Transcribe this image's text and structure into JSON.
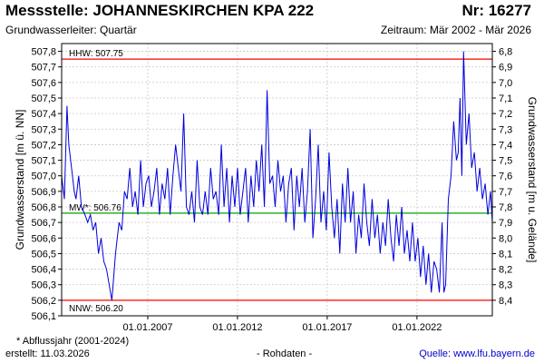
{
  "header": {
    "title": "Messstelle: JOHANNESKIRCHEN KPA 222",
    "number": "Nr: 16277",
    "aquifer": "Grundwasserleiter: Quartär",
    "period": "Zeitraum: Mär 2002 - Mär 2026"
  },
  "footer": {
    "note": "* Abflussjahr (2001-2024)",
    "created": "erstellt:  11.03.2026",
    "raw": "- Rohdaten -",
    "source": "Quelle: www.lfu.bayern.de"
  },
  "chart_data": {
    "type": "line",
    "ylabel": "Grundwasserstand [m ü. NN]",
    "y2label": "Grundwasserstand [m u. Gelände]",
    "ylim": [
      506.1,
      507.85
    ],
    "y_ticks": [
      "506,1",
      "506,2",
      "506,3",
      "506,4",
      "506,5",
      "506,6",
      "506,7",
      "506,8",
      "506,9",
      "507,0",
      "507,1",
      "507,2",
      "507,3",
      "507,4",
      "507,5",
      "507,6",
      "507,7",
      "507,8"
    ],
    "y2_ticks": [
      "6,8",
      "6,9",
      "7,0",
      "7,1",
      "7,2",
      "7,3",
      "7,4",
      "7,5",
      "7,6",
      "7,7",
      "7,8",
      "7,9",
      "8,0",
      "8,1",
      "8,2",
      "8,3",
      "8,4"
    ],
    "y2_reference": 514.6,
    "xlim": [
      2002.2,
      2026.2
    ],
    "x_ticks": [
      {
        "x": 2007.0,
        "label": "01.01.2007"
      },
      {
        "x": 2012.0,
        "label": "01.01.2012"
      },
      {
        "x": 2017.0,
        "label": "01.01.2017"
      },
      {
        "x": 2022.0,
        "label": "01.01.2022"
      }
    ],
    "grid": true,
    "reference_lines": [
      {
        "label": "HHW: 507.75",
        "value": 507.75,
        "color": "#ff0000"
      },
      {
        "label": "MW*: 506.76",
        "value": 506.76,
        "color": "#00a000"
      },
      {
        "label": "NNW: 506.20",
        "value": 506.2,
        "color": "#ff0000"
      }
    ],
    "series": [
      {
        "color": "#0000dd",
        "x": [
          2002.2,
          2002.35,
          2002.5,
          2002.6,
          2002.75,
          2002.9,
          2003.0,
          2003.15,
          2003.3,
          2003.5,
          2003.65,
          2003.8,
          2003.95,
          2004.1,
          2004.25,
          2004.4,
          2004.55,
          2004.7,
          2004.85,
          2005.0,
          2005.2,
          2005.4,
          2005.55,
          2005.7,
          2005.85,
          2006.0,
          2006.15,
          2006.3,
          2006.45,
          2006.6,
          2006.75,
          2006.9,
          2007.05,
          2007.2,
          2007.35,
          2007.5,
          2007.65,
          2007.8,
          2007.95,
          2008.1,
          2008.25,
          2008.4,
          2008.55,
          2008.7,
          2008.85,
          2009.0,
          2009.15,
          2009.3,
          2009.45,
          2009.6,
          2009.75,
          2009.9,
          2010.05,
          2010.2,
          2010.35,
          2010.5,
          2010.65,
          2010.8,
          2010.95,
          2011.1,
          2011.25,
          2011.4,
          2011.55,
          2011.7,
          2011.85,
          2012.0,
          2012.15,
          2012.3,
          2012.45,
          2012.6,
          2012.75,
          2012.9,
          2013.05,
          2013.2,
          2013.35,
          2013.5,
          2013.65,
          2013.8,
          2013.95,
          2014.1,
          2014.25,
          2014.4,
          2014.55,
          2014.7,
          2014.85,
          2015.0,
          2015.15,
          2015.3,
          2015.45,
          2015.6,
          2015.75,
          2015.9,
          2016.05,
          2016.2,
          2016.35,
          2016.5,
          2016.65,
          2016.8,
          2016.95,
          2017.1,
          2017.25,
          2017.4,
          2017.55,
          2017.7,
          2017.85,
          2018.0,
          2018.15,
          2018.3,
          2018.45,
          2018.6,
          2018.75,
          2018.9,
          2019.05,
          2019.2,
          2019.35,
          2019.5,
          2019.65,
          2019.8,
          2019.95,
          2020.1,
          2020.25,
          2020.4,
          2020.55,
          2020.7,
          2020.85,
          2021.0,
          2021.15,
          2021.3,
          2021.45,
          2021.6,
          2021.75,
          2021.9,
          2022.05,
          2022.2,
          2022.35,
          2022.5,
          2022.65,
          2022.8,
          2022.95,
          2023.1,
          2023.25,
          2023.4,
          2023.5,
          2023.6,
          2023.75,
          2023.9,
          2024.05,
          2024.2,
          2024.3,
          2024.4,
          2024.5,
          2024.6,
          2024.75,
          2024.9,
          2025.05,
          2025.2,
          2025.35,
          2025.5,
          2025.65,
          2025.8,
          2025.95,
          2026.1,
          2026.2
        ],
        "y": [
          507.0,
          506.85,
          507.45,
          507.2,
          507.05,
          506.9,
          506.85,
          507.0,
          506.8,
          506.75,
          506.7,
          506.75,
          506.65,
          506.7,
          506.5,
          506.6,
          506.45,
          506.4,
          506.3,
          506.2,
          506.5,
          506.7,
          506.65,
          506.9,
          506.85,
          507.05,
          506.8,
          506.9,
          506.75,
          507.1,
          506.8,
          506.95,
          507.0,
          506.8,
          506.9,
          507.05,
          506.75,
          506.95,
          506.85,
          507.05,
          506.75,
          507.0,
          507.2,
          507.05,
          506.9,
          507.4,
          506.8,
          506.75,
          506.9,
          506.7,
          507.1,
          506.8,
          506.75,
          506.9,
          506.75,
          507.05,
          506.85,
          506.9,
          506.75,
          507.2,
          506.8,
          507.05,
          506.7,
          507.0,
          506.8,
          507.05,
          506.75,
          506.9,
          507.05,
          506.7,
          507.0,
          506.8,
          507.1,
          506.9,
          507.2,
          506.8,
          507.55,
          506.95,
          507.0,
          506.8,
          507.1,
          506.9,
          507.0,
          506.7,
          506.95,
          507.05,
          506.65,
          507.0,
          506.8,
          507.05,
          506.7,
          506.9,
          507.3,
          506.6,
          506.85,
          507.2,
          506.7,
          506.9,
          506.65,
          507.15,
          506.8,
          506.6,
          506.85,
          506.5,
          506.95,
          506.7,
          507.05,
          506.7,
          506.9,
          506.5,
          506.75,
          506.6,
          506.95,
          506.7,
          506.55,
          506.85,
          506.6,
          506.75,
          506.5,
          506.7,
          506.55,
          506.85,
          506.6,
          506.45,
          506.75,
          506.55,
          506.8,
          506.5,
          506.65,
          506.45,
          506.7,
          506.45,
          506.6,
          506.35,
          506.55,
          506.3,
          506.5,
          506.25,
          506.45,
          506.4,
          506.25,
          506.7,
          506.25,
          506.3,
          506.85,
          507.0,
          507.35,
          507.1,
          507.15,
          507.5,
          507.0,
          507.8,
          507.2,
          507.4,
          507.05,
          507.15,
          506.9,
          507.05,
          506.85,
          506.95,
          506.75,
          506.9,
          506.7
        ]
      }
    ]
  }
}
